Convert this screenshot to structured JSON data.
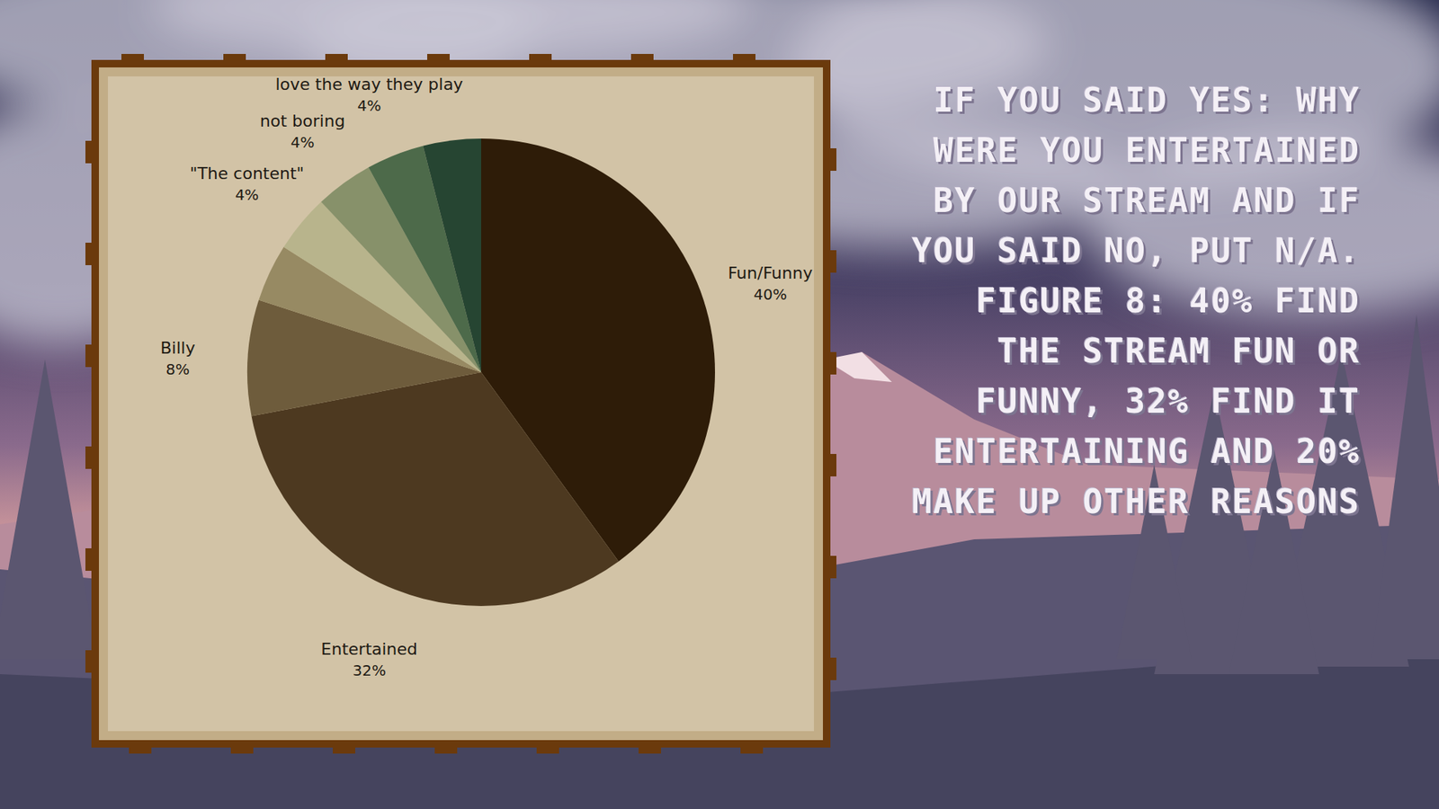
{
  "chart_data": {
    "type": "pie",
    "categories": [
      "Fun/Funny",
      "Entertained",
      "Billy",
      null,
      "\"The content\"",
      "not boring",
      "love the way they play",
      null
    ],
    "values": [
      40,
      32,
      8,
      4,
      4,
      4,
      4,
      4
    ],
    "value_labels": [
      "40%",
      "32%",
      "8%",
      null,
      "4%",
      "4%",
      "4%",
      null
    ],
    "colors": [
      "#2e1c08",
      "#4d3920",
      "#6e5c3c",
      "#978a63",
      "#b8b48c",
      "#87916a",
      "#4d6a4a",
      "#264532"
    ],
    "data_labels": true,
    "annotations": [
      "IF YOU SAID YES: WHY WERE YOU ENTERTAINED BY OUR STREAM AND IF YOU SAID NO, PUT N/A. FIGURE 8: 40% FIND THE STREAM FUN OR FUNNY, 32% FIND IT ENTERTAINING AND 20% MAKE UP OTHER REASONS"
    ]
  }
}
